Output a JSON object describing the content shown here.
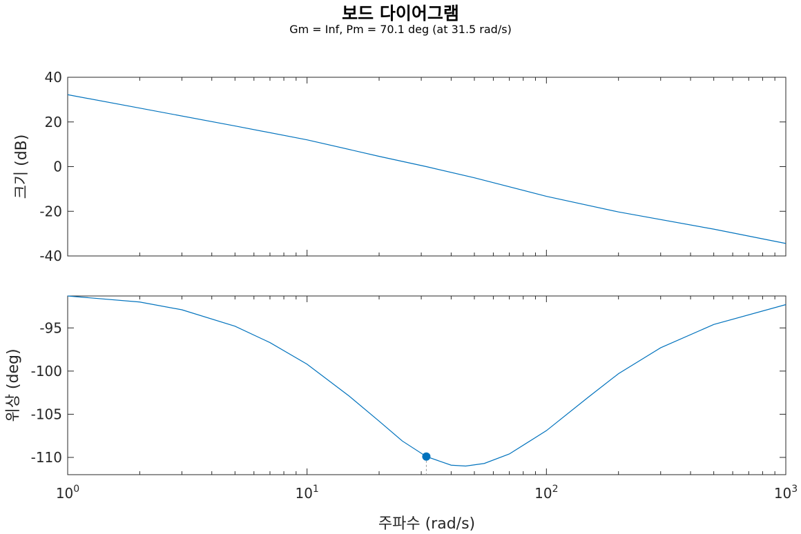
{
  "figure": {
    "title": "보드 다이어그램",
    "subtitle": "Gm = Inf,  Pm = 70.1 deg (at 31.5 rad/s)",
    "xlabel": "주파수 (rad/s)",
    "line_color": "#0072BD",
    "marker_color": "#0072BD"
  },
  "chart_data": [
    {
      "type": "line",
      "name": "magnitude",
      "xscale": "log",
      "xlim": [
        1,
        1000
      ],
      "ylim": [
        -40,
        40
      ],
      "ylabel": "크기 (dB)",
      "yticks": [
        40,
        20,
        0,
        -20,
        -40
      ],
      "xticks": [
        1,
        10,
        100,
        1000
      ],
      "xtick_labels": [
        {
          "base": "10",
          "exp": "0"
        },
        {
          "base": "10",
          "exp": "1"
        },
        {
          "base": "10",
          "exp": "2"
        },
        {
          "base": "10",
          "exp": "3"
        }
      ],
      "grid": false,
      "series": [
        {
          "x": [
            1,
            2,
            5,
            10,
            20,
            31.5,
            50,
            100,
            200,
            500,
            1000
          ],
          "y": [
            32.2,
            26.2,
            18.2,
            12.0,
            4.6,
            0.0,
            -5.0,
            -13.3,
            -20.3,
            -28.0,
            -34.4
          ]
        }
      ]
    },
    {
      "type": "line",
      "name": "phase",
      "xscale": "log",
      "xlim": [
        1,
        1000
      ],
      "ylim": [
        -112,
        -91.3
      ],
      "ylabel": "위상 (deg)",
      "yticks": [
        -95,
        -100,
        -105,
        -110
      ],
      "xticks": [
        1,
        10,
        100,
        1000
      ],
      "xtick_labels": [
        {
          "base": "10",
          "exp": "0"
        },
        {
          "base": "10",
          "exp": "1"
        },
        {
          "base": "10",
          "exp": "2"
        },
        {
          "base": "10",
          "exp": "3"
        }
      ],
      "grid": false,
      "series": [
        {
          "x": [
            1,
            2,
            3,
            5,
            7,
            10,
            15,
            20,
            25,
            31.5,
            40,
            46,
            55,
            70,
            100,
            150,
            200,
            300,
            500,
            1000
          ],
          "y": [
            -91.3,
            -92.0,
            -92.9,
            -94.8,
            -96.7,
            -99.2,
            -102.9,
            -105.8,
            -108.1,
            -109.9,
            -110.9,
            -111.0,
            -110.7,
            -109.6,
            -106.9,
            -103.0,
            -100.3,
            -97.3,
            -94.6,
            -92.3
          ]
        }
      ],
      "marker": {
        "x": 31.5,
        "y": -109.9,
        "label": "Pm = 70.1 deg"
      }
    }
  ]
}
